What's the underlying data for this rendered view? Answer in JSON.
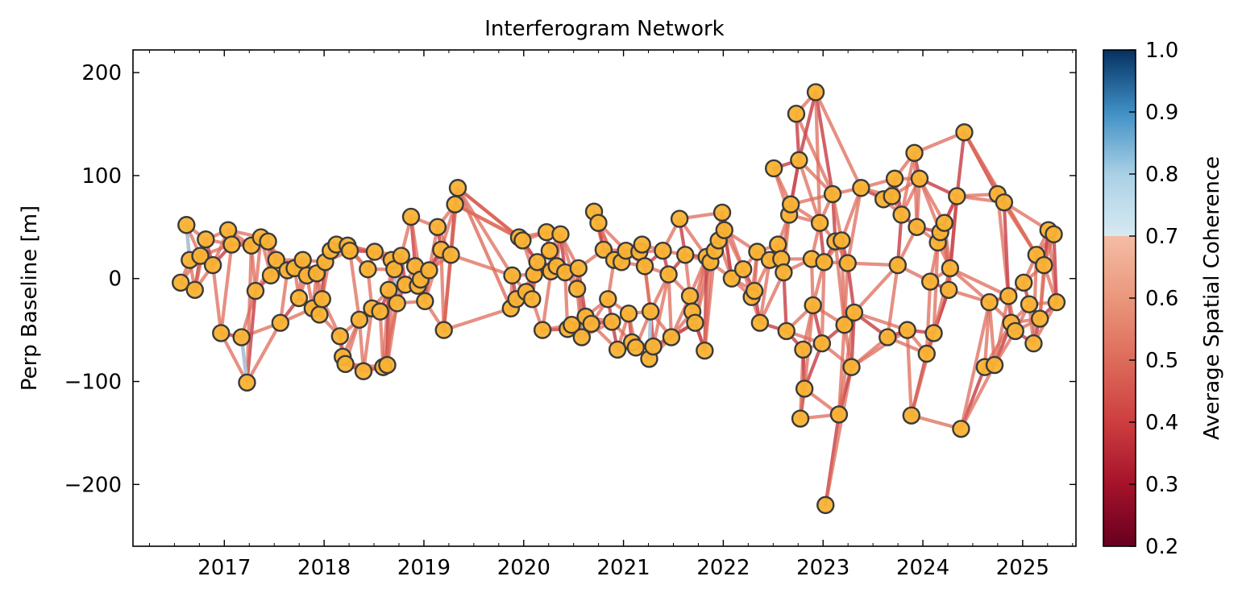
{
  "chart_data": {
    "type": "scatter",
    "title": "Interferogram Network",
    "xlabel": "",
    "ylabel": "Perp Baseline [m]",
    "xlim": [
      "2016-02-01",
      "2025-07-15"
    ],
    "ylim": [
      -260,
      222
    ],
    "x_tick_labels": [
      "2017",
      "2018",
      "2019",
      "2020",
      "2021",
      "2022",
      "2023",
      "2024",
      "2025"
    ],
    "y_tick_labels": [
      "200",
      "100",
      "0",
      "−100",
      "−200"
    ],
    "y_ticks": [
      200,
      100,
      0,
      -100,
      -200
    ],
    "grid": false,
    "marker_color": "#f9b233",
    "marker_edge_color": "#3a3a3a",
    "colorbar": {
      "label": "Average Spatial Coherence",
      "range": [
        0.2,
        1.0
      ],
      "tick_labels": [
        "1.0",
        "0.9",
        "0.8",
        "0.7",
        "0.6",
        "0.5",
        "0.4",
        "0.3",
        "0.2"
      ],
      "ticks": [
        1.0,
        0.9,
        0.8,
        0.7,
        0.6,
        0.5,
        0.4,
        0.3,
        0.2
      ],
      "colormap": "RdBu",
      "color_stops": [
        {
          "value": 0.2,
          "color": "#67001f"
        },
        {
          "value": 0.3,
          "color": "#a5122a"
        },
        {
          "value": 0.4,
          "color": "#cd3e40"
        },
        {
          "value": 0.5,
          "color": "#dd6b5a"
        },
        {
          "value": 0.6,
          "color": "#ea977c"
        },
        {
          "value": 0.7,
          "color": "#f4bda5"
        },
        {
          "value": 0.7001,
          "color": "#d7eaf3"
        },
        {
          "value": 0.8,
          "color": "#a9d0e5"
        },
        {
          "value": 0.9,
          "color": "#3f8fc4"
        },
        {
          "value": 1.0,
          "color": "#053061"
        }
      ]
    },
    "acquisitions": [
      {
        "date": "2016-07-25",
        "bperp": -4
      },
      {
        "date": "2016-08-15",
        "bperp": 52
      },
      {
        "date": "2016-08-27",
        "bperp": 18
      },
      {
        "date": "2016-09-15",
        "bperp": -11
      },
      {
        "date": "2016-10-05",
        "bperp": 22
      },
      {
        "date": "2016-10-25",
        "bperp": 38
      },
      {
        "date": "2016-11-20",
        "bperp": 13
      },
      {
        "date": "2016-12-20",
        "bperp": -53
      },
      {
        "date": "2017-01-15",
        "bperp": 47
      },
      {
        "date": "2017-01-28",
        "bperp": 33
      },
      {
        "date": "2017-03-05",
        "bperp": -57
      },
      {
        "date": "2017-03-25",
        "bperp": -101
      },
      {
        "date": "2017-04-10",
        "bperp": 32
      },
      {
        "date": "2017-04-25",
        "bperp": -12
      },
      {
        "date": "2017-05-15",
        "bperp": 40
      },
      {
        "date": "2017-06-10",
        "bperp": 36
      },
      {
        "date": "2017-06-20",
        "bperp": 3
      },
      {
        "date": "2017-07-10",
        "bperp": 18
      },
      {
        "date": "2017-07-25",
        "bperp": -43
      },
      {
        "date": "2017-08-20",
        "bperp": 8
      },
      {
        "date": "2017-09-15",
        "bperp": 10
      },
      {
        "date": "2017-10-01",
        "bperp": -19
      },
      {
        "date": "2017-10-15",
        "bperp": 18
      },
      {
        "date": "2017-10-30",
        "bperp": 3
      },
      {
        "date": "2017-11-20",
        "bperp": -29
      },
      {
        "date": "2017-12-05",
        "bperp": 5
      },
      {
        "date": "2017-12-15",
        "bperp": -35
      },
      {
        "date": "2017-12-25",
        "bperp": -20
      },
      {
        "date": "2018-01-05",
        "bperp": 16
      },
      {
        "date": "2018-01-25",
        "bperp": 27
      },
      {
        "date": "2018-02-15",
        "bperp": 33
      },
      {
        "date": "2018-02-28",
        "bperp": -56
      },
      {
        "date": "2018-03-10",
        "bperp": -76
      },
      {
        "date": "2018-03-20",
        "bperp": -83
      },
      {
        "date": "2018-03-28",
        "bperp": 32
      },
      {
        "date": "2018-04-05",
        "bperp": 27
      },
      {
        "date": "2018-05-10",
        "bperp": -40
      },
      {
        "date": "2018-05-25",
        "bperp": -90
      },
      {
        "date": "2018-06-10",
        "bperp": 9
      },
      {
        "date": "2018-06-25",
        "bperp": -29
      },
      {
        "date": "2018-07-05",
        "bperp": 26
      },
      {
        "date": "2018-07-25",
        "bperp": -32
      },
      {
        "date": "2018-08-05",
        "bperp": -86
      },
      {
        "date": "2018-08-20",
        "bperp": -84
      },
      {
        "date": "2018-08-25",
        "bperp": -11
      },
      {
        "date": "2018-09-05",
        "bperp": 18
      },
      {
        "date": "2018-09-15",
        "bperp": 9
      },
      {
        "date": "2018-09-25",
        "bperp": -24
      },
      {
        "date": "2018-10-10",
        "bperp": 22
      },
      {
        "date": "2018-10-25",
        "bperp": -6
      },
      {
        "date": "2018-11-15",
        "bperp": 60
      },
      {
        "date": "2018-11-30",
        "bperp": 12
      },
      {
        "date": "2018-12-10",
        "bperp": -7
      },
      {
        "date": "2018-12-20",
        "bperp": -1
      },
      {
        "date": "2019-01-05",
        "bperp": -22
      },
      {
        "date": "2019-01-20",
        "bperp": 8
      },
      {
        "date": "2019-02-20",
        "bperp": 50
      },
      {
        "date": "2019-03-05",
        "bperp": 28
      },
      {
        "date": "2019-03-15",
        "bperp": -50
      },
      {
        "date": "2019-04-10",
        "bperp": 23
      },
      {
        "date": "2019-04-25",
        "bperp": 72
      },
      {
        "date": "2019-05-05",
        "bperp": 88
      },
      {
        "date": "2019-11-15",
        "bperp": -29
      },
      {
        "date": "2019-11-20",
        "bperp": 3
      },
      {
        "date": "2019-12-05",
        "bperp": -20
      },
      {
        "date": "2019-12-15",
        "bperp": 40
      },
      {
        "date": "2019-12-28",
        "bperp": 37
      },
      {
        "date": "2020-01-10",
        "bperp": -13
      },
      {
        "date": "2020-02-01",
        "bperp": -20
      },
      {
        "date": "2020-02-08",
        "bperp": 4
      },
      {
        "date": "2020-02-20",
        "bperp": 16
      },
      {
        "date": "2020-03-10",
        "bperp": -50
      },
      {
        "date": "2020-03-25",
        "bperp": 45
      },
      {
        "date": "2020-04-05",
        "bperp": 27
      },
      {
        "date": "2020-04-10",
        "bperp": 7
      },
      {
        "date": "2020-05-01",
        "bperp": 12
      },
      {
        "date": "2020-05-15",
        "bperp": 43
      },
      {
        "date": "2020-06-01",
        "bperp": 6
      },
      {
        "date": "2020-06-10",
        "bperp": -49
      },
      {
        "date": "2020-06-25",
        "bperp": -45
      },
      {
        "date": "2020-07-15",
        "bperp": -10
      },
      {
        "date": "2020-07-20",
        "bperp": 10
      },
      {
        "date": "2020-08-01",
        "bperp": -57
      },
      {
        "date": "2020-08-15",
        "bperp": -37
      },
      {
        "date": "2020-09-05",
        "bperp": -44
      },
      {
        "date": "2020-09-15",
        "bperp": 65
      },
      {
        "date": "2020-10-01",
        "bperp": 54
      },
      {
        "date": "2020-10-20",
        "bperp": 28
      },
      {
        "date": "2020-11-05",
        "bperp": -20
      },
      {
        "date": "2020-11-20",
        "bperp": -42
      },
      {
        "date": "2020-11-28",
        "bperp": 18
      },
      {
        "date": "2020-12-10",
        "bperp": -69
      },
      {
        "date": "2020-12-25",
        "bperp": 16
      },
      {
        "date": "2021-01-10",
        "bperp": 27
      },
      {
        "date": "2021-01-20",
        "bperp": -34
      },
      {
        "date": "2021-02-01",
        "bperp": -62
      },
      {
        "date": "2021-02-15",
        "bperp": -67
      },
      {
        "date": "2021-02-28",
        "bperp": 26
      },
      {
        "date": "2021-03-10",
        "bperp": 33
      },
      {
        "date": "2021-03-20",
        "bperp": 12
      },
      {
        "date": "2021-04-05",
        "bperp": -78
      },
      {
        "date": "2021-04-10",
        "bperp": -32
      },
      {
        "date": "2021-04-20",
        "bperp": -66
      },
      {
        "date": "2021-05-25",
        "bperp": 27
      },
      {
        "date": "2021-06-15",
        "bperp": 4
      },
      {
        "date": "2021-06-25",
        "bperp": -57
      },
      {
        "date": "2021-07-25",
        "bperp": 58
      },
      {
        "date": "2021-08-15",
        "bperp": 23
      },
      {
        "date": "2021-09-01",
        "bperp": -17
      },
      {
        "date": "2021-09-10",
        "bperp": -32
      },
      {
        "date": "2021-09-20",
        "bperp": -43
      },
      {
        "date": "2021-10-25",
        "bperp": -70
      },
      {
        "date": "2021-11-01",
        "bperp": 21
      },
      {
        "date": "2021-11-15",
        "bperp": 16
      },
      {
        "date": "2021-12-01",
        "bperp": 27
      },
      {
        "date": "2021-12-15",
        "bperp": 37
      },
      {
        "date": "2021-12-28",
        "bperp": 64
      },
      {
        "date": "2022-01-05",
        "bperp": 47
      },
      {
        "date": "2022-02-01",
        "bperp": 0
      },
      {
        "date": "2022-03-15",
        "bperp": 9
      },
      {
        "date": "2022-04-15",
        "bperp": -18
      },
      {
        "date": "2022-04-25",
        "bperp": -12
      },
      {
        "date": "2022-05-05",
        "bperp": 26
      },
      {
        "date": "2022-05-15",
        "bperp": -43
      },
      {
        "date": "2022-06-20",
        "bperp": 18
      },
      {
        "date": "2022-07-05",
        "bperp": 107
      },
      {
        "date": "2022-07-20",
        "bperp": 33
      },
      {
        "date": "2022-08-01",
        "bperp": 19
      },
      {
        "date": "2022-08-10",
        "bperp": 6
      },
      {
        "date": "2022-08-20",
        "bperp": -51
      },
      {
        "date": "2022-08-30",
        "bperp": 62
      },
      {
        "date": "2022-09-05",
        "bperp": 72
      },
      {
        "date": "2022-09-25",
        "bperp": 160
      },
      {
        "date": "2022-10-05",
        "bperp": 115
      },
      {
        "date": "2022-10-10",
        "bperp": -136
      },
      {
        "date": "2022-10-20",
        "bperp": -69
      },
      {
        "date": "2022-10-25",
        "bperp": -107
      },
      {
        "date": "2022-11-20",
        "bperp": 19
      },
      {
        "date": "2022-11-25",
        "bperp": -26
      },
      {
        "date": "2022-12-05",
        "bperp": 181
      },
      {
        "date": "2022-12-20",
        "bperp": 54
      },
      {
        "date": "2022-12-28",
        "bperp": -63
      },
      {
        "date": "2023-01-05",
        "bperp": 16
      },
      {
        "date": "2023-01-10",
        "bperp": -220
      },
      {
        "date": "2023-02-05",
        "bperp": 82
      },
      {
        "date": "2023-02-15",
        "bperp": 36
      },
      {
        "date": "2023-02-28",
        "bperp": -132
      },
      {
        "date": "2023-03-10",
        "bperp": 37
      },
      {
        "date": "2023-03-20",
        "bperp": -45
      },
      {
        "date": "2023-04-01",
        "bperp": 15
      },
      {
        "date": "2023-04-15",
        "bperp": -86
      },
      {
        "date": "2023-04-25",
        "bperp": -33
      },
      {
        "date": "2023-05-20",
        "bperp": 88
      },
      {
        "date": "2023-08-10",
        "bperp": 77
      },
      {
        "date": "2023-08-25",
        "bperp": -57
      },
      {
        "date": "2023-09-10",
        "bperp": 80
      },
      {
        "date": "2023-09-20",
        "bperp": 97
      },
      {
        "date": "2023-10-01",
        "bperp": 13
      },
      {
        "date": "2023-10-15",
        "bperp": 62
      },
      {
        "date": "2023-11-05",
        "bperp": -50
      },
      {
        "date": "2023-11-20",
        "bperp": -133
      },
      {
        "date": "2023-12-01",
        "bperp": 122
      },
      {
        "date": "2023-12-10",
        "bperp": 50
      },
      {
        "date": "2023-12-20",
        "bperp": 97
      },
      {
        "date": "2024-01-15",
        "bperp": -73
      },
      {
        "date": "2024-01-28",
        "bperp": -3
      },
      {
        "date": "2024-02-10",
        "bperp": -53
      },
      {
        "date": "2024-02-25",
        "bperp": 35
      },
      {
        "date": "2024-03-05",
        "bperp": 45
      },
      {
        "date": "2024-03-20",
        "bperp": 54
      },
      {
        "date": "2024-04-05",
        "bperp": -11
      },
      {
        "date": "2024-04-10",
        "bperp": 10
      },
      {
        "date": "2024-05-05",
        "bperp": 80
      },
      {
        "date": "2024-05-20",
        "bperp": -146
      },
      {
        "date": "2024-06-01",
        "bperp": 142
      },
      {
        "date": "2024-08-15",
        "bperp": -86
      },
      {
        "date": "2024-09-01",
        "bperp": -23
      },
      {
        "date": "2024-09-20",
        "bperp": -84
      },
      {
        "date": "2024-10-01",
        "bperp": 82
      },
      {
        "date": "2024-10-25",
        "bperp": 74
      },
      {
        "date": "2024-11-10",
        "bperp": -17
      },
      {
        "date": "2024-11-20",
        "bperp": -43
      },
      {
        "date": "2024-12-05",
        "bperp": -51
      },
      {
        "date": "2025-01-05",
        "bperp": -4
      },
      {
        "date": "2025-01-25",
        "bperp": -25
      },
      {
        "date": "2025-02-10",
        "bperp": -63
      },
      {
        "date": "2025-02-20",
        "bperp": 23
      },
      {
        "date": "2025-03-05",
        "bperp": -39
      },
      {
        "date": "2025-03-20",
        "bperp": 13
      },
      {
        "date": "2025-04-05",
        "bperp": 47
      },
      {
        "date": "2025-04-25",
        "bperp": 43
      },
      {
        "date": "2025-05-05",
        "bperp": -23
      }
    ],
    "pairs_low_coherence_color": "#c44e52",
    "pairs_high_coherence_color": "#a9d0e5"
  }
}
